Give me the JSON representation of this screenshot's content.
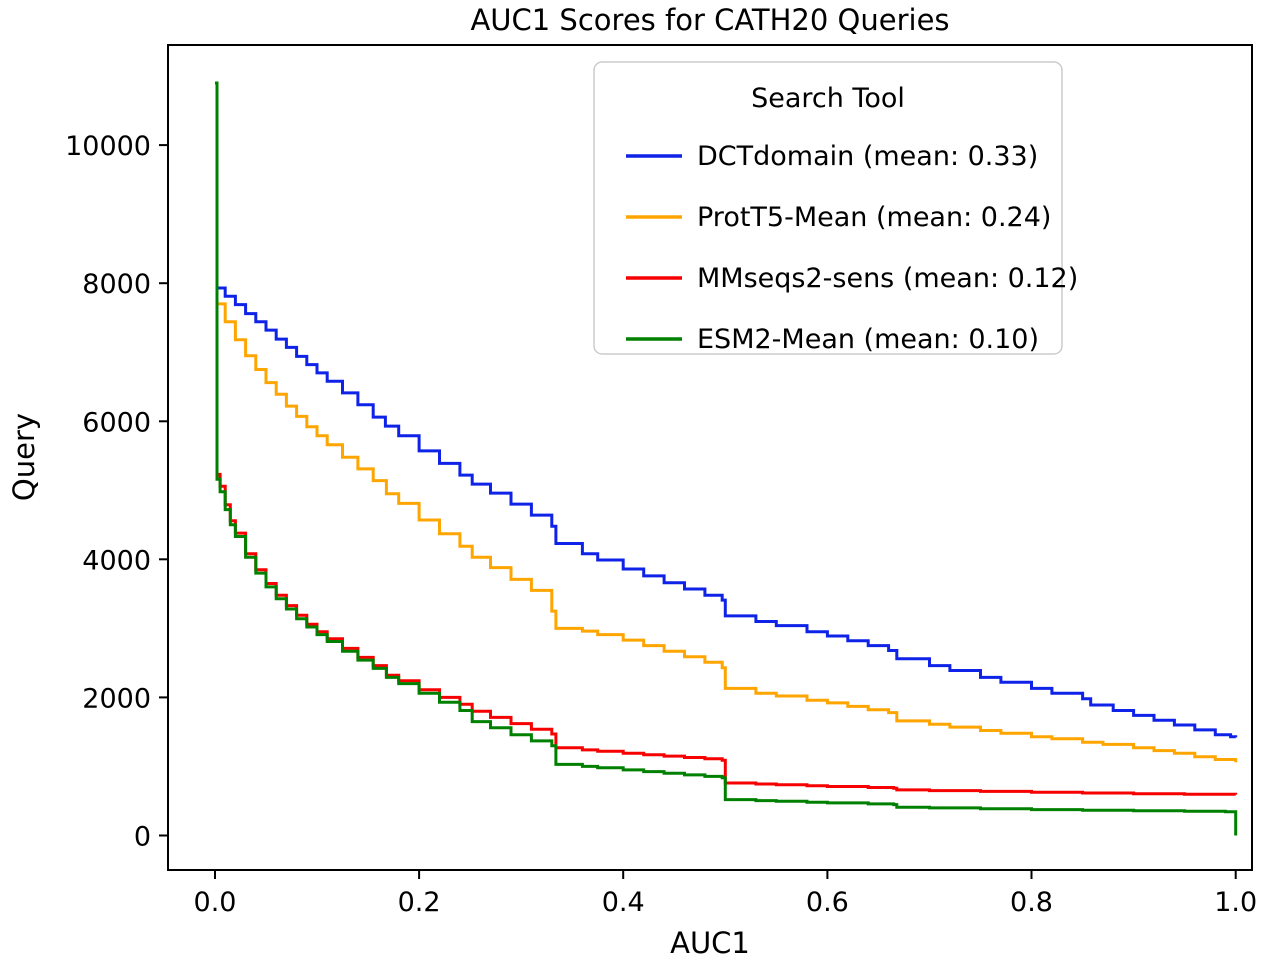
{
  "chart_data": {
    "type": "line",
    "title": "AUC1 Scores for CATH20 Queries",
    "xlabel": "AUC1",
    "ylabel": "Query",
    "xlim": [
      -0.046,
      1.016
    ],
    "ylim": [
      -500,
      11450
    ],
    "grid": false,
    "x_ticks": {
      "values": [
        0.0,
        0.2,
        0.4,
        0.6,
        0.8,
        1.0
      ],
      "labels": [
        "0.0",
        "0.2",
        "0.4",
        "0.6",
        "0.8",
        "1.0"
      ]
    },
    "y_ticks": {
      "values": [
        0,
        2000,
        4000,
        6000,
        8000,
        10000
      ],
      "labels": [
        "0",
        "2000",
        "4000",
        "6000",
        "8000",
        "10000"
      ]
    },
    "legend": {
      "title": "Search Tool",
      "position": "upper right"
    },
    "series": [
      {
        "name": "DCTdomain",
        "label": "DCTdomain (mean: 0.33)",
        "mean": 0.33,
        "color": "#0f23e8",
        "step": true,
        "points": [
          [
            0,
            10900
          ],
          [
            0.002,
            7930
          ],
          [
            0.01,
            7810
          ],
          [
            0.02,
            7690
          ],
          [
            0.03,
            7560
          ],
          [
            0.04,
            7440
          ],
          [
            0.05,
            7320
          ],
          [
            0.06,
            7190
          ],
          [
            0.07,
            7070
          ],
          [
            0.08,
            6940
          ],
          [
            0.09,
            6820
          ],
          [
            0.1,
            6700
          ],
          [
            0.11,
            6580
          ],
          [
            0.125,
            6410
          ],
          [
            0.14,
            6240
          ],
          [
            0.155,
            6060
          ],
          [
            0.167,
            5930
          ],
          [
            0.18,
            5790
          ],
          [
            0.2,
            5570
          ],
          [
            0.22,
            5390
          ],
          [
            0.24,
            5220
          ],
          [
            0.252,
            5090
          ],
          [
            0.27,
            4960
          ],
          [
            0.29,
            4800
          ],
          [
            0.31,
            4640
          ],
          [
            0.33,
            4480
          ],
          [
            0.334,
            4230
          ],
          [
            0.36,
            4080
          ],
          [
            0.375,
            3990
          ],
          [
            0.4,
            3860
          ],
          [
            0.42,
            3760
          ],
          [
            0.44,
            3660
          ],
          [
            0.46,
            3570
          ],
          [
            0.48,
            3480
          ],
          [
            0.497,
            3410
          ],
          [
            0.5,
            3180
          ],
          [
            0.53,
            3100
          ],
          [
            0.55,
            3040
          ],
          [
            0.58,
            2950
          ],
          [
            0.6,
            2890
          ],
          [
            0.62,
            2820
          ],
          [
            0.64,
            2750
          ],
          [
            0.66,
            2680
          ],
          [
            0.668,
            2560
          ],
          [
            0.7,
            2460
          ],
          [
            0.72,
            2390
          ],
          [
            0.75,
            2290
          ],
          [
            0.77,
            2220
          ],
          [
            0.8,
            2130
          ],
          [
            0.82,
            2060
          ],
          [
            0.85,
            1980
          ],
          [
            0.858,
            1890
          ],
          [
            0.88,
            1810
          ],
          [
            0.9,
            1740
          ],
          [
            0.92,
            1670
          ],
          [
            0.94,
            1600
          ],
          [
            0.96,
            1530
          ],
          [
            0.98,
            1460
          ],
          [
            0.995,
            1430
          ],
          [
            1.0,
            1420
          ]
        ]
      },
      {
        "name": "ProtT5-Mean",
        "label": "ProtT5-Mean (mean: 0.24)",
        "mean": 0.24,
        "color": "#ffa500",
        "step": true,
        "points": [
          [
            0,
            10900
          ],
          [
            0.002,
            7700
          ],
          [
            0.01,
            7440
          ],
          [
            0.02,
            7180
          ],
          [
            0.03,
            6950
          ],
          [
            0.04,
            6750
          ],
          [
            0.05,
            6560
          ],
          [
            0.06,
            6390
          ],
          [
            0.07,
            6220
          ],
          [
            0.08,
            6070
          ],
          [
            0.09,
            5920
          ],
          [
            0.1,
            5790
          ],
          [
            0.11,
            5660
          ],
          [
            0.125,
            5480
          ],
          [
            0.14,
            5310
          ],
          [
            0.155,
            5140
          ],
          [
            0.168,
            4950
          ],
          [
            0.18,
            4810
          ],
          [
            0.2,
            4570
          ],
          [
            0.22,
            4370
          ],
          [
            0.24,
            4190
          ],
          [
            0.252,
            4030
          ],
          [
            0.27,
            3880
          ],
          [
            0.29,
            3710
          ],
          [
            0.31,
            3550
          ],
          [
            0.33,
            3250
          ],
          [
            0.334,
            3000
          ],
          [
            0.36,
            2960
          ],
          [
            0.375,
            2910
          ],
          [
            0.4,
            2830
          ],
          [
            0.42,
            2750
          ],
          [
            0.44,
            2670
          ],
          [
            0.46,
            2590
          ],
          [
            0.48,
            2510
          ],
          [
            0.497,
            2430
          ],
          [
            0.5,
            2130
          ],
          [
            0.53,
            2060
          ],
          [
            0.55,
            2020
          ],
          [
            0.58,
            1960
          ],
          [
            0.6,
            1920
          ],
          [
            0.62,
            1870
          ],
          [
            0.64,
            1820
          ],
          [
            0.66,
            1780
          ],
          [
            0.668,
            1660
          ],
          [
            0.7,
            1610
          ],
          [
            0.72,
            1570
          ],
          [
            0.75,
            1520
          ],
          [
            0.77,
            1480
          ],
          [
            0.8,
            1430
          ],
          [
            0.82,
            1400
          ],
          [
            0.85,
            1350
          ],
          [
            0.87,
            1320
          ],
          [
            0.9,
            1270
          ],
          [
            0.92,
            1230
          ],
          [
            0.94,
            1190
          ],
          [
            0.96,
            1140
          ],
          [
            0.98,
            1100
          ],
          [
            1.0,
            1060
          ]
        ]
      },
      {
        "name": "MMseqs2-sens",
        "label": "MMseqs2-sens (mean: 0.12)",
        "mean": 0.12,
        "color": "#f60000",
        "step": true,
        "points": [
          [
            0,
            10900
          ],
          [
            0.002,
            5230
          ],
          [
            0.005,
            5060
          ],
          [
            0.01,
            4790
          ],
          [
            0.015,
            4560
          ],
          [
            0.02,
            4380
          ],
          [
            0.03,
            4080
          ],
          [
            0.04,
            3850
          ],
          [
            0.05,
            3650
          ],
          [
            0.06,
            3480
          ],
          [
            0.07,
            3330
          ],
          [
            0.08,
            3190
          ],
          [
            0.09,
            3060
          ],
          [
            0.1,
            2950
          ],
          [
            0.11,
            2850
          ],
          [
            0.125,
            2710
          ],
          [
            0.14,
            2580
          ],
          [
            0.155,
            2460
          ],
          [
            0.168,
            2320
          ],
          [
            0.18,
            2240
          ],
          [
            0.2,
            2110
          ],
          [
            0.22,
            2000
          ],
          [
            0.24,
            1900
          ],
          [
            0.252,
            1800
          ],
          [
            0.27,
            1710
          ],
          [
            0.29,
            1620
          ],
          [
            0.31,
            1540
          ],
          [
            0.33,
            1470
          ],
          [
            0.334,
            1270
          ],
          [
            0.36,
            1240
          ],
          [
            0.375,
            1220
          ],
          [
            0.4,
            1190
          ],
          [
            0.42,
            1170
          ],
          [
            0.44,
            1150
          ],
          [
            0.46,
            1130
          ],
          [
            0.48,
            1110
          ],
          [
            0.497,
            1090
          ],
          [
            0.5,
            760
          ],
          [
            0.53,
            745
          ],
          [
            0.55,
            735
          ],
          [
            0.58,
            720
          ],
          [
            0.6,
            710
          ],
          [
            0.64,
            695
          ],
          [
            0.665,
            685
          ],
          [
            0.668,
            660
          ],
          [
            0.7,
            650
          ],
          [
            0.75,
            638
          ],
          [
            0.8,
            625
          ],
          [
            0.85,
            615
          ],
          [
            0.9,
            605
          ],
          [
            0.95,
            598
          ],
          [
            1.0,
            592
          ]
        ]
      },
      {
        "name": "ESM2-Mean",
        "label": "ESM2-Mean (mean: 0.10)",
        "mean": 0.1,
        "color": "#008000",
        "step": true,
        "points": [
          [
            0,
            10900
          ],
          [
            0.002,
            5160
          ],
          [
            0.005,
            4980
          ],
          [
            0.01,
            4720
          ],
          [
            0.015,
            4500
          ],
          [
            0.02,
            4330
          ],
          [
            0.03,
            4030
          ],
          [
            0.04,
            3800
          ],
          [
            0.05,
            3600
          ],
          [
            0.06,
            3430
          ],
          [
            0.07,
            3280
          ],
          [
            0.08,
            3140
          ],
          [
            0.09,
            3020
          ],
          [
            0.1,
            2910
          ],
          [
            0.11,
            2810
          ],
          [
            0.125,
            2670
          ],
          [
            0.14,
            2540
          ],
          [
            0.155,
            2420
          ],
          [
            0.168,
            2290
          ],
          [
            0.18,
            2200
          ],
          [
            0.2,
            2060
          ],
          [
            0.22,
            1930
          ],
          [
            0.24,
            1810
          ],
          [
            0.252,
            1650
          ],
          [
            0.27,
            1560
          ],
          [
            0.29,
            1460
          ],
          [
            0.31,
            1370
          ],
          [
            0.33,
            1300
          ],
          [
            0.334,
            1030
          ],
          [
            0.36,
            1000
          ],
          [
            0.375,
            980
          ],
          [
            0.4,
            950
          ],
          [
            0.42,
            925
          ],
          [
            0.44,
            900
          ],
          [
            0.46,
            878
          ],
          [
            0.48,
            856
          ],
          [
            0.497,
            835
          ],
          [
            0.5,
            520
          ],
          [
            0.53,
            505
          ],
          [
            0.55,
            495
          ],
          [
            0.58,
            482
          ],
          [
            0.6,
            472
          ],
          [
            0.64,
            458
          ],
          [
            0.665,
            448
          ],
          [
            0.668,
            410
          ],
          [
            0.7,
            400
          ],
          [
            0.75,
            388
          ],
          [
            0.8,
            375
          ],
          [
            0.85,
            365
          ],
          [
            0.9,
            357
          ],
          [
            0.95,
            350
          ],
          [
            0.99,
            345
          ],
          [
            1.0,
            0
          ]
        ]
      }
    ]
  }
}
